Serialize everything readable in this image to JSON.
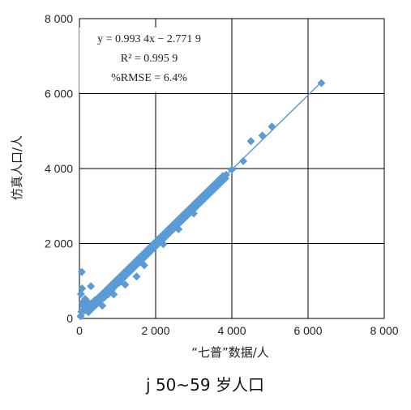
{
  "chart_data": {
    "type": "scatter",
    "title": "",
    "caption": "j 50~59 岁人口",
    "xlabel": "“七普”数据/人",
    "ylabel": "仿真人口/人",
    "xlim": [
      0,
      8000
    ],
    "ylim": [
      0,
      8000
    ],
    "x_ticks": [
      0,
      2000,
      4000,
      6000,
      8000
    ],
    "y_ticks": [
      0,
      2000,
      4000,
      6000,
      8000
    ],
    "x_tick_labels": [
      "0",
      "2 000",
      "4 000",
      "6 000",
      "8 000"
    ],
    "y_tick_labels": [
      "0",
      "2 000",
      "4 000",
      "6 000",
      "8 000"
    ],
    "grid": true,
    "annotation": {
      "equation": "y = 0.993 4x − 2.771 9",
      "r2": "R² = 0.995 9",
      "rmse": "%RMSE = 6.4%"
    },
    "fit_line": {
      "slope": 0.9934,
      "intercept": -2.7719
    },
    "color": "#5b9bd5",
    "series": [
      {
        "points": [
          [
            30,
            60
          ],
          [
            50,
            180
          ],
          [
            60,
            1240
          ],
          [
            70,
            800
          ],
          [
            40,
            650
          ],
          [
            80,
            420
          ],
          [
            100,
            330
          ],
          [
            120,
            250
          ],
          [
            150,
            520
          ],
          [
            200,
            460
          ],
          [
            220,
            380
          ],
          [
            250,
            300
          ],
          [
            300,
            860
          ],
          [
            350,
            420
          ],
          [
            400,
            480
          ],
          [
            450,
            380
          ],
          [
            500,
            560
          ],
          [
            550,
            470
          ],
          [
            600,
            600
          ],
          [
            650,
            560
          ],
          [
            700,
            700
          ],
          [
            750,
            640
          ],
          [
            800,
            800
          ],
          [
            850,
            760
          ],
          [
            900,
            880
          ],
          [
            950,
            900
          ],
          [
            1000,
            1000
          ],
          [
            1050,
            960
          ],
          [
            1100,
            1100
          ],
          [
            1150,
            1080
          ],
          [
            1200,
            1180
          ],
          [
            1250,
            1250
          ],
          [
            1300,
            1300
          ],
          [
            1350,
            1320
          ],
          [
            1400,
            1380
          ],
          [
            1450,
            1460
          ],
          [
            1500,
            1500
          ],
          [
            1550,
            1540
          ],
          [
            1600,
            1600
          ],
          [
            1650,
            1640
          ],
          [
            1700,
            1700
          ],
          [
            1750,
            1760
          ],
          [
            1800,
            1800
          ],
          [
            1850,
            1840
          ],
          [
            1900,
            1900
          ],
          [
            1950,
            1960
          ],
          [
            2000,
            1990
          ],
          [
            2050,
            2040
          ],
          [
            2100,
            2100
          ],
          [
            2150,
            2140
          ],
          [
            2200,
            2190
          ],
          [
            2250,
            2240
          ],
          [
            2300,
            2290
          ],
          [
            2350,
            2350
          ],
          [
            2400,
            2390
          ],
          [
            2450,
            2440
          ],
          [
            2500,
            2490
          ],
          [
            2550,
            2540
          ],
          [
            2600,
            2590
          ],
          [
            2650,
            2640
          ],
          [
            2700,
            2690
          ],
          [
            2750,
            2740
          ],
          [
            2800,
            2780
          ],
          [
            2850,
            2830
          ],
          [
            2900,
            2890
          ],
          [
            2950,
            2940
          ],
          [
            3000,
            2990
          ],
          [
            3050,
            3030
          ],
          [
            3100,
            3090
          ],
          [
            3150,
            3130
          ],
          [
            3200,
            3180
          ],
          [
            3250,
            3230
          ],
          [
            3300,
            3280
          ],
          [
            3350,
            3330
          ],
          [
            3400,
            3390
          ],
          [
            3500,
            3480
          ],
          [
            3600,
            3580
          ],
          [
            3750,
            3740
          ],
          [
            3850,
            3830
          ],
          [
            4000,
            3970
          ],
          [
            4300,
            4200
          ],
          [
            4500,
            4730
          ],
          [
            4800,
            4880
          ],
          [
            5050,
            5120
          ],
          [
            6350,
            6280
          ],
          [
            1200,
            900
          ],
          [
            1700,
            1420
          ],
          [
            1500,
            1120
          ],
          [
            900,
            640
          ],
          [
            600,
            340
          ],
          [
            2200,
            1980
          ],
          [
            2600,
            2380
          ],
          [
            3000,
            2800
          ]
        ]
      }
    ]
  }
}
